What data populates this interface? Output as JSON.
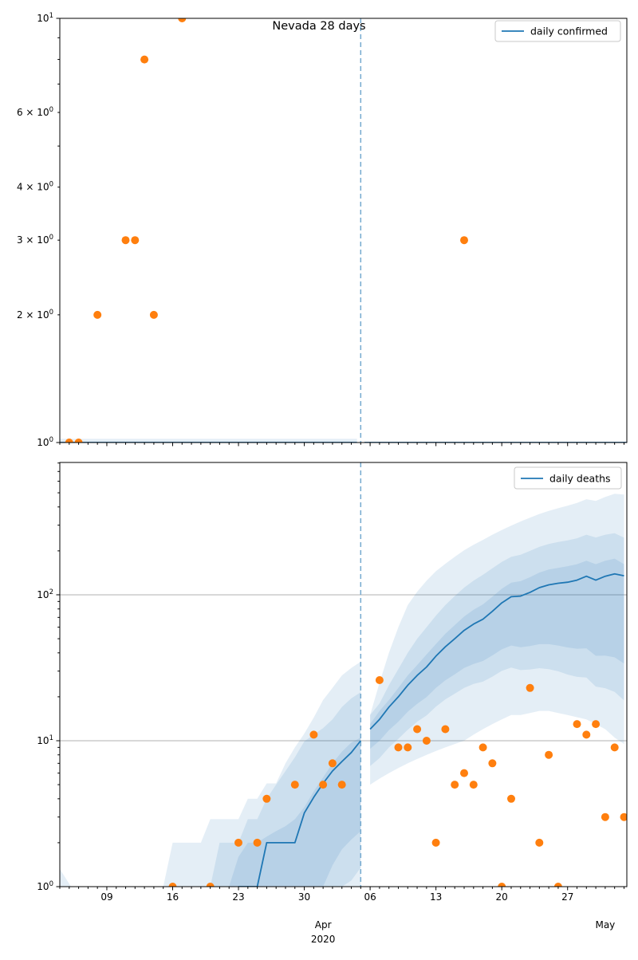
{
  "title": "Nevada 28 days",
  "chart_data": {
    "type": "scatter+line",
    "title": "Nevada 28 days",
    "x_axis": {
      "day_span": [
        0,
        60.3
      ],
      "major_ticks": [
        {
          "day": 5,
          "label": "09"
        },
        {
          "day": 12,
          "label": "16"
        },
        {
          "day": 19,
          "label": "23"
        },
        {
          "day": 26,
          "label": "30"
        },
        {
          "day": 33,
          "label": "06"
        },
        {
          "day": 40,
          "label": "13"
        },
        {
          "day": 47,
          "label": "20"
        },
        {
          "day": 54,
          "label": "27"
        }
      ],
      "minor_tick_every_day": 1,
      "month_labels": [
        {
          "day": 28,
          "text": "Apr",
          "subtext": "2020"
        },
        {
          "day": 58,
          "text": "May"
        }
      ]
    },
    "cutoff_day": 32,
    "charts": [
      {
        "panel": "top",
        "legend_label": "daily confirmed",
        "yscale": "log",
        "ylim": [
          1,
          10
        ],
        "grid_values": [],
        "ytick_major": [
          {
            "v": 1,
            "base": "10",
            "sup": "0"
          },
          {
            "v": 10,
            "base": "10",
            "sup": "1"
          }
        ],
        "ytick_minor_labeled": [
          {
            "v": 2,
            "base": "2 × 10",
            "sup": "0"
          },
          {
            "v": 3,
            "base": "3 × 10",
            "sup": "0"
          },
          {
            "v": 4,
            "base": "4 × 10",
            "sup": "0"
          },
          {
            "v": 6,
            "base": "6 × 10",
            "sup": "0"
          }
        ],
        "ytick_minor": [
          2,
          3,
          4,
          5,
          6,
          7,
          8,
          9
        ],
        "scatter": [
          [
            1,
            1
          ],
          [
            2,
            1
          ],
          [
            4,
            2
          ],
          [
            7,
            3
          ],
          [
            8,
            3
          ],
          [
            9,
            8
          ],
          [
            10,
            2
          ],
          [
            13,
            10
          ],
          [
            43,
            3
          ]
        ],
        "line": {
          "segments": [
            {
              "d": [
                0,
                31.6
              ],
              "v": [
                1,
                1
              ]
            },
            {
              "d": [
                32.4,
                60.3
              ],
              "v": [
                1,
                1
              ]
            }
          ]
        },
        "bands": [
          {
            "name": "fit-halo",
            "d": [
              0,
              31.6
            ],
            "lo": [
              0.97,
              0.97
            ],
            "hi": [
              1.02,
              1.02
            ]
          }
        ]
      },
      {
        "panel": "bottom",
        "legend_label": "daily deaths",
        "yscale": "log",
        "ylim": [
          1,
          807
        ],
        "grid_values": [
          10,
          100
        ],
        "ytick_major": [
          {
            "v": 1,
            "base": "10",
            "sup": "0"
          },
          {
            "v": 10,
            "base": "10",
            "sup": "1"
          },
          {
            "v": 100,
            "base": "10",
            "sup": "2"
          }
        ],
        "ytick_minor_labeled": [],
        "ytick_minor": [
          2,
          3,
          4,
          5,
          6,
          7,
          8,
          9,
          20,
          30,
          40,
          50,
          60,
          70,
          80,
          90,
          200,
          300,
          400,
          500,
          600,
          700,
          800
        ],
        "scatter": [
          [
            12,
            1
          ],
          [
            16,
            1
          ],
          [
            19,
            2
          ],
          [
            21,
            2
          ],
          [
            22,
            4
          ],
          [
            25,
            5
          ],
          [
            27,
            11
          ],
          [
            28,
            5
          ],
          [
            29,
            7
          ],
          [
            30,
            5
          ],
          [
            34,
            26
          ],
          [
            36,
            9
          ],
          [
            37,
            9
          ],
          [
            38,
            12
          ],
          [
            39,
            10
          ],
          [
            40,
            2
          ],
          [
            41,
            12
          ],
          [
            42,
            5
          ],
          [
            43,
            6
          ],
          [
            44,
            5
          ],
          [
            45,
            9
          ],
          [
            46,
            7
          ],
          [
            47,
            1
          ],
          [
            48,
            4
          ],
          [
            50,
            23
          ],
          [
            51,
            2
          ],
          [
            52,
            8
          ],
          [
            53,
            1
          ],
          [
            55,
            13
          ],
          [
            56,
            11
          ],
          [
            57,
            13
          ],
          [
            58,
            3
          ],
          [
            59,
            9
          ],
          [
            60,
            3
          ]
        ],
        "line": {
          "segments": [
            {
              "d": [
                19,
                20,
                21,
                22,
                23,
                24,
                25,
                26,
                27,
                28,
                29,
                30,
                31,
                32
              ],
              "v": [
                1,
                1,
                1,
                2,
                2,
                2,
                2,
                3.2,
                4.1,
                5.1,
                6.2,
                7.2,
                8.3,
                10
              ]
            },
            {
              "d": [
                33,
                34,
                35,
                36,
                37,
                38,
                39,
                40,
                41,
                42,
                43,
                44,
                45,
                46,
                47,
                48,
                49,
                50,
                51,
                52,
                53,
                54,
                55,
                56,
                57,
                58,
                59,
                60
              ],
              "v": [
                12,
                14,
                17,
                20,
                24,
                28,
                32,
                38,
                44,
                50,
                57,
                63,
                68,
                77,
                88,
                97,
                98,
                104,
                112,
                117,
                120,
                122,
                126,
                134,
                126,
                134,
                139,
                135
              ]
            }
          ]
        },
        "bands": [
          {
            "name": "start-wedge",
            "d": [
              0,
              1.2
            ],
            "lo": [
              0.9,
              0.9
            ],
            "hi": [
              1.32,
              0.95
            ]
          },
          {
            "name": "fit-outer",
            "d": [
              11,
              12,
              13,
              14,
              15,
              16,
              17,
              18,
              19,
              20,
              21,
              22,
              23,
              24,
              25,
              26,
              27,
              28,
              29,
              30,
              31,
              32
            ],
            "lo": [
              0.9,
              0.9,
              0.9,
              0.9,
              0.9,
              0.9,
              0.9,
              0.9,
              0.9,
              0.9,
              0.9,
              0.9,
              0.9,
              0.9,
              0.9,
              0.9,
              0.9,
              0.9,
              0.9,
              0.9,
              0.9,
              0.9
            ],
            "hi": [
              1,
              2,
              2,
              2,
              2,
              2.9,
              2.9,
              2.9,
              2.9,
              4,
              4,
              5.1,
              5.1,
              7,
              9,
              11.2,
              14.4,
              19,
              23,
              28,
              31.5,
              34.8
            ]
          },
          {
            "name": "fit-middle",
            "d": [
              16,
              17,
              18,
              19,
              20,
              21,
              22,
              23,
              24,
              25,
              26,
              27,
              28,
              29,
              30,
              31,
              32
            ],
            "lo": [
              0.9,
              0.9,
              0.9,
              0.9,
              0.9,
              0.9,
              0.9,
              0.9,
              0.9,
              0.9,
              0.9,
              0.9,
              0.9,
              0.9,
              0.9,
              1.1,
              1.35
            ],
            "hi": [
              1,
              2,
              2,
              2,
              2.9,
              2.9,
              4,
              5,
              6.2,
              7.7,
              9.9,
              11,
              12.2,
              14,
              17,
              19.5,
              21.5
            ]
          },
          {
            "name": "fit-inner",
            "d": [
              18,
              19,
              20,
              21,
              22,
              23,
              24,
              25,
              26,
              27,
              28,
              29,
              30,
              31,
              32
            ],
            "lo": [
              0.9,
              0.9,
              0.9,
              0.9,
              0.9,
              0.9,
              0.9,
              0.9,
              0.9,
              0.9,
              0.95,
              1.4,
              1.8,
              2.1,
              2.4
            ],
            "hi": [
              1,
              1.6,
              2,
              2,
              2.2,
              2.4,
              2.6,
              2.9,
              3.5,
              4.5,
              5.6,
              7,
              8.4,
              9.7,
              10.5
            ]
          },
          {
            "name": "forecast-outer",
            "d": [
              33,
              34,
              35,
              36,
              37,
              38,
              39,
              40,
              41,
              42,
              43,
              44,
              45,
              46,
              47,
              48,
              49,
              50,
              51,
              52,
              53,
              54,
              55,
              56,
              57,
              58,
              59,
              60
            ],
            "lo": [
              5,
              5.5,
              6,
              6.5,
              7,
              7.5,
              8,
              8.5,
              9,
              9.5,
              10,
              11,
              12,
              13,
              14,
              15,
              15,
              15.5,
              16,
              16,
              15.5,
              15,
              14.5,
              14,
              13,
              12,
              10.5,
              9.5
            ],
            "hi": [
              15,
              25,
              40,
              60,
              85,
              105,
              125,
              145,
              163,
              182,
              202,
              220,
              238,
              258,
              278,
              298,
              318,
              338,
              358,
              376,
              392,
              408,
              426,
              452,
              440,
              468,
              492,
              486
            ]
          },
          {
            "name": "forecast-middle",
            "d": [
              33,
              34,
              35,
              36,
              37,
              38,
              39,
              40,
              41,
              42,
              43,
              44,
              45,
              46,
              47,
              48,
              49,
              50,
              51,
              52,
              53,
              54,
              55,
              56,
              57,
              58,
              59,
              60
            ],
            "lo": [
              6.7,
              7.6,
              9,
              10.3,
              11.9,
              13.5,
              14.9,
              17.1,
              19.2,
              21,
              23,
              24.5,
              25.4,
              27.5,
              30.1,
              31.7,
              30.5,
              30.8,
              31.4,
              30.9,
              29.9,
              28.4,
              27.4,
              27.1,
              23.5,
              22.9,
              21.6,
              18.9
            ],
            "hi": [
              15,
              18,
              24,
              31,
              40,
              50,
              60,
              72,
              85,
              98,
              112,
              125,
              137,
              152,
              168,
              182,
              188,
              200,
              213,
              223,
              230,
              236,
              244,
              258,
              247,
              258,
              264,
              246
            ]
          },
          {
            "name": "forecast-inner",
            "d": [
              33,
              34,
              35,
              36,
              37,
              38,
              39,
              40,
              41,
              42,
              43,
              44,
              45,
              46,
              47,
              48,
              49,
              50,
              51,
              52,
              53,
              54,
              55,
              56,
              57,
              58,
              59,
              60
            ],
            "lo": [
              8.8,
              10,
              11.8,
              13.5,
              15.8,
              17.9,
              19.9,
              23,
              25.9,
              28.5,
              31.5,
              33.6,
              35.2,
              38.4,
              42.3,
              44.9,
              43.7,
              44.5,
              45.9,
              45.9,
              44.9,
              43.6,
              42.7,
              43,
              38.2,
              38.3,
              37.3,
              33.8
            ],
            "hi": [
              13,
              16,
              19,
              23,
              28,
              33,
              39,
              46,
              54,
              62,
              71,
              79,
              86,
              97,
              110,
              121,
              124,
              132,
              142,
              149,
              153,
              157,
              162,
              171,
              162,
              171,
              177,
              162
            ]
          }
        ]
      }
    ]
  },
  "colors": {
    "scatter": "#ff7f0e",
    "line": "#1f77b4",
    "band_fill": "rgba(31,119,180,0.12)",
    "cutoff_line": "#74a9cf",
    "grid": "#b0b0b0",
    "frame": "#000000",
    "legend_border": "#c9c9c9"
  }
}
